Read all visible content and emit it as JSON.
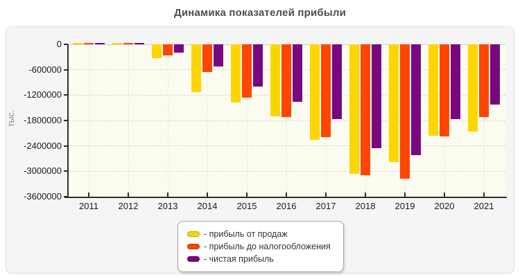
{
  "title": "Динамика показателей прибыли",
  "y_axis": {
    "unit_label": "тыс.",
    "tick_labels": [
      "0",
      "-600000",
      "-1200000",
      "-1800000",
      "-2400000",
      "-3000000",
      "-3600000"
    ],
    "tick_values": [
      0,
      -600000,
      -1200000,
      -1800000,
      -2400000,
      -3000000,
      -3600000
    ]
  },
  "x_axis": {
    "tick_labels": [
      "2011",
      "2012",
      "2013",
      "2014",
      "2015",
      "2016",
      "2017",
      "2018",
      "2019",
      "2020",
      "2021"
    ]
  },
  "legend": {
    "items": [
      {
        "label": "- прибыль от продаж",
        "color": "#FFD500",
        "border_color": "#c9a600"
      },
      {
        "label": "- прибыль до налогообложения",
        "color": "#FF4500",
        "border_color": "#c23300"
      },
      {
        "label": "- чистая прибыль",
        "color": "#780880",
        "border_color": "#4c0052"
      }
    ]
  },
  "chart_data": {
    "type": "bar",
    "title": "Динамика показателей прибыли",
    "xlabel": "",
    "ylabel": "тыс.",
    "categories": [
      "2011",
      "2012",
      "2013",
      "2014",
      "2015",
      "2016",
      "2017",
      "2018",
      "2019",
      "2020",
      "2021"
    ],
    "series": [
      {
        "name": "прибыль от продаж",
        "color": "#FFD500",
        "values": [
          20000,
          20000,
          -320000,
          -1130000,
          -1380000,
          -1700000,
          -2260000,
          -3055000,
          -2780000,
          -2160000,
          -2060000
        ]
      },
      {
        "name": "прибыль до налогообложения",
        "color": "#FF4500",
        "values": [
          15000,
          15000,
          -255000,
          -655000,
          -1255000,
          -1710000,
          -2190000,
          -3095000,
          -3180000,
          -2180000,
          -1725000
        ]
      },
      {
        "name": "чистая прибыль",
        "color": "#780880",
        "values": [
          25000,
          40000,
          -200000,
          -520000,
          -995000,
          -1365000,
          -1765000,
          -2460000,
          -2610000,
          -1765000,
          -1430000
        ]
      }
    ],
    "ylim": [
      -3600000,
      0
    ],
    "grid": true,
    "legend_position": "bottom"
  }
}
